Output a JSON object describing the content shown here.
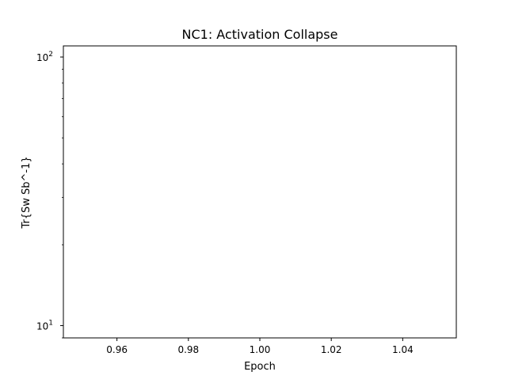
{
  "chart_data": {
    "type": "line",
    "title": "NC1: Activation Collapse",
    "xlabel": "Epoch",
    "ylabel": "Tr{Sw Sb^-1}",
    "xlim": [
      0.945,
      1.055
    ],
    "ylim": [
      9.0,
      110.0
    ],
    "yscale": "log",
    "grid": false,
    "x_ticks": [
      {
        "value": 0.96,
        "label": "0.96"
      },
      {
        "value": 0.98,
        "label": "0.98"
      },
      {
        "value": 1.0,
        "label": "1.00"
      },
      {
        "value": 1.02,
        "label": "1.02"
      },
      {
        "value": 1.04,
        "label": "1.04"
      }
    ],
    "y_ticks": [
      {
        "value": 10,
        "base": "10",
        "exp": "1"
      },
      {
        "value": 100,
        "base": "10",
        "exp": "2"
      }
    ],
    "series": []
  }
}
